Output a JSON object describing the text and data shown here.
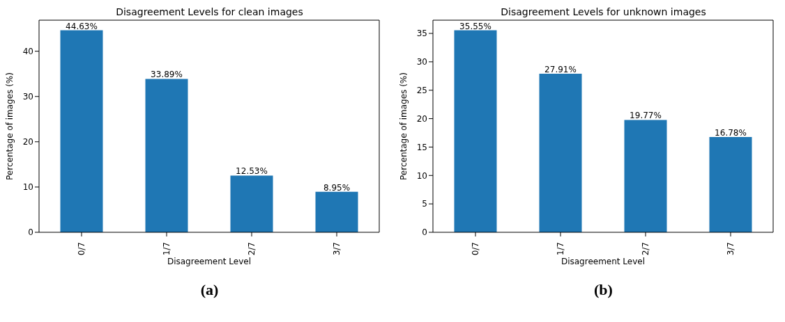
{
  "chart_data": [
    {
      "type": "bar",
      "title": "Disagreement Levels for clean images",
      "xlabel": "Disagreement Level",
      "ylabel": "Percentage of images (%)",
      "categories": [
        "0/7",
        "1/7",
        "2/7",
        "3/7"
      ],
      "values": [
        44.63,
        33.89,
        12.53,
        8.95
      ],
      "value_labels": [
        "44.63%",
        "33.89%",
        "12.53%",
        "8.95%"
      ],
      "color": "#1f77b4",
      "ylim": [
        0,
        46.86
      ],
      "yticks": [
        0,
        10,
        20,
        30,
        40
      ],
      "annotations": [
        "(a)"
      ]
    },
    {
      "type": "bar",
      "title": "Disagreement Levels for unknown images",
      "xlabel": "Disagreement Level",
      "ylabel": "Percentage of images (%)",
      "categories": [
        "0/7",
        "1/7",
        "2/7",
        "3/7"
      ],
      "values": [
        35.55,
        27.91,
        19.77,
        16.78
      ],
      "value_labels": [
        "35.55%",
        "27.91%",
        "19.77%",
        "16.78%"
      ],
      "color": "#1f77b4",
      "ylim": [
        0,
        37.33
      ],
      "yticks": [
        0,
        5,
        10,
        15,
        20,
        25,
        30,
        35
      ],
      "annotations": [
        "(b)"
      ]
    }
  ]
}
